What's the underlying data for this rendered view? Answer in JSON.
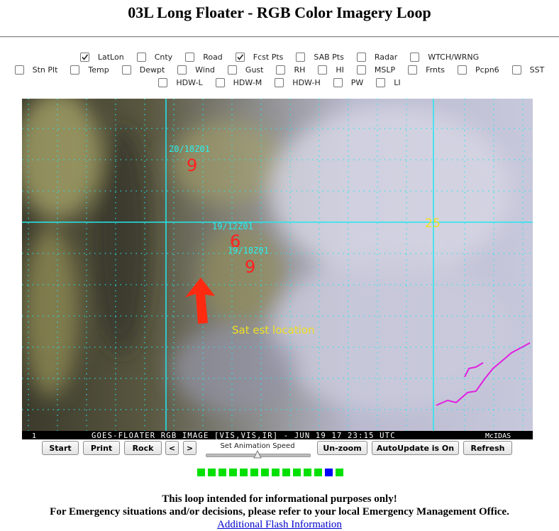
{
  "header": {
    "title": "03L Long Floater - RGB Color Imagery Loop"
  },
  "overlays": {
    "rows": [
      [
        {
          "label": "LatLon",
          "checked": true
        },
        {
          "label": "Cnty",
          "checked": false
        },
        {
          "label": "Road",
          "checked": false
        },
        {
          "label": "Fcst Pts",
          "checked": true
        },
        {
          "label": "SAB Pts",
          "checked": false
        },
        {
          "label": "Radar",
          "checked": false
        },
        {
          "label": "WTCH/WRNG",
          "checked": false
        }
      ],
      [
        {
          "label": "Stn Plt",
          "checked": false
        },
        {
          "label": "Temp",
          "checked": false
        },
        {
          "label": "Dewpt",
          "checked": false
        },
        {
          "label": "Wind",
          "checked": false
        },
        {
          "label": "Gust",
          "checked": false
        },
        {
          "label": "RH",
          "checked": false
        },
        {
          "label": "HI",
          "checked": false
        },
        {
          "label": "MSLP",
          "checked": false
        },
        {
          "label": "Frnts",
          "checked": false
        },
        {
          "label": "Pcpn6",
          "checked": false
        },
        {
          "label": "SST",
          "checked": false
        }
      ],
      [
        {
          "label": "HDW-L",
          "checked": false
        },
        {
          "label": "HDW-M",
          "checked": false
        },
        {
          "label": "HDW-H",
          "checked": false
        },
        {
          "label": "PW",
          "checked": false
        },
        {
          "label": "LI",
          "checked": false
        }
      ]
    ]
  },
  "image": {
    "labels": {
      "fcst1_time": "20/18Z01",
      "fcst1_symbol": "9",
      "fcst2_time": "19/12Z01",
      "fcst2_symbol": "6",
      "fcst3_time": "19/18Z01",
      "fcst3_symbol": "9",
      "lat_label": "25",
      "annotation": "Sat est location"
    },
    "status_bar": {
      "frame": "1",
      "text": "GOES-FLOATER RGB IMAGE [VIS,VIS,IR] - JUN 19 17 23:15 UTC",
      "source": "McIDAS"
    }
  },
  "controls": {
    "buttons": [
      "Start",
      "Print",
      "Rock",
      "<",
      ">",
      "Un-zoom",
      "AutoUpdate is On",
      "Refresh"
    ],
    "speed_label": "Set Animation Speed"
  },
  "footer": {
    "line1": "This loop intended for informational purposes only!",
    "line2": "For Emergency situations and/or decisions, please refer to your local Emergency Management Office.",
    "link": "Additional Flash Information"
  }
}
